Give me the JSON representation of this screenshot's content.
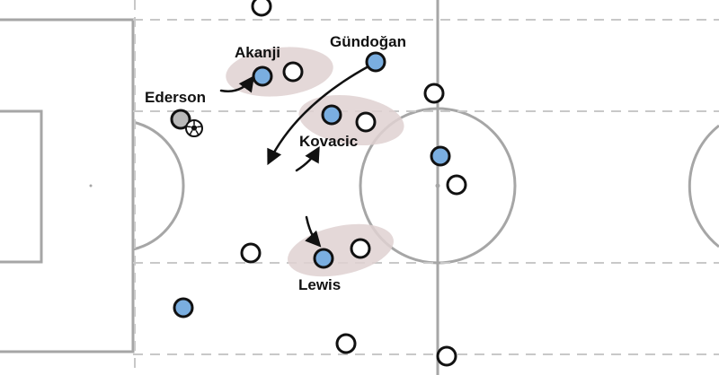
{
  "colors": {
    "pitch_line": "#a6a6a6",
    "zone_line": "#c8c8c8",
    "highlight": "#e0d2d2",
    "team_a": "#7aaee0",
    "team_b": "#ffffff",
    "goalkeeper": "#b9b9b9",
    "outline": "#111111"
  },
  "labels": {
    "ederson": "Ederson",
    "akanji": "Akanji",
    "gundogan": "Gündoğan",
    "kovacic": "Kovacic",
    "lewis": "Lewis"
  },
  "icons": {
    "ball": "football-icon"
  }
}
